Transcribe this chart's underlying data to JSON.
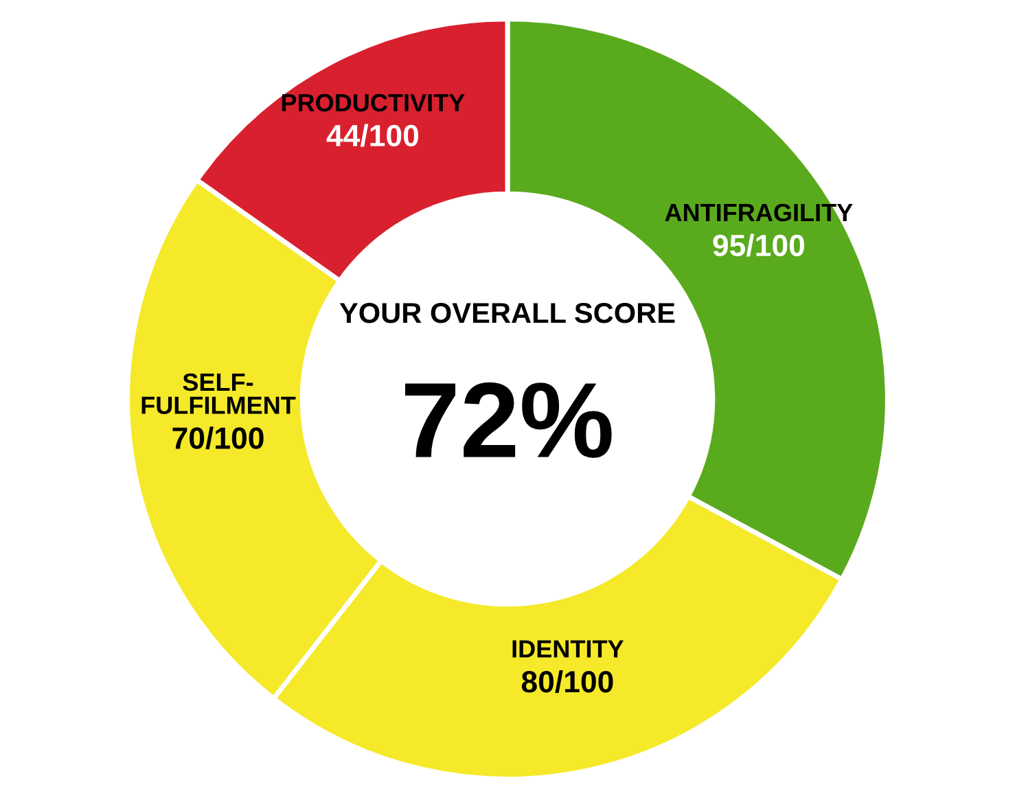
{
  "chart_data": {
    "type": "donut",
    "categories": [
      "ANTIFRAGILITY",
      "IDENTITY",
      "SELF-FULFILMENT",
      "PRODUCTIVITY"
    ],
    "values": [
      95,
      80,
      70,
      44
    ],
    "colors": [
      "#5aaa1e",
      "#f5e92a",
      "#f5e92a",
      "#d9202f"
    ],
    "value_labels": [
      "95/100",
      "80/100",
      "70/100",
      "44/100"
    ],
    "annotations": [
      "YOUR OVERALL SCORE",
      "72%"
    ],
    "legend": false
  }
}
